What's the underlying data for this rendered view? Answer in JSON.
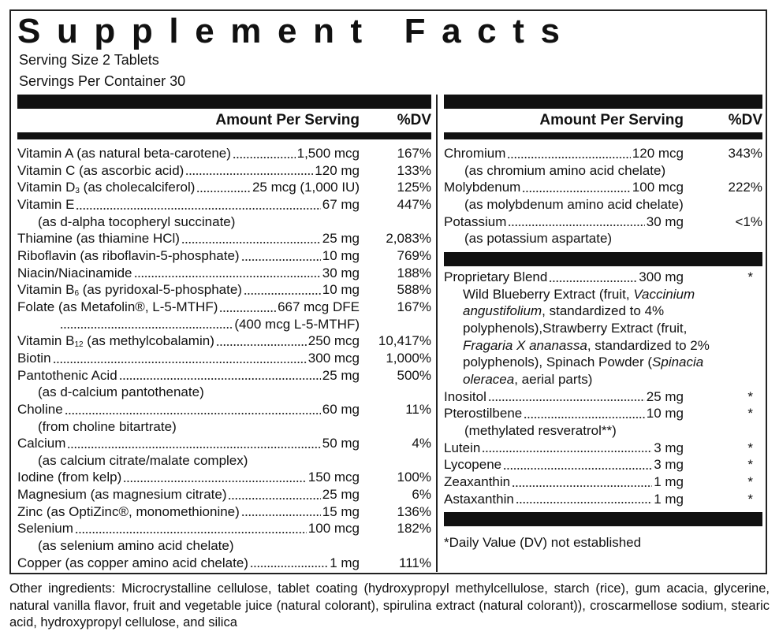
{
  "title": "Supplement Facts",
  "serving_size": "Serving Size 2 Tablets",
  "servings_per_container": "Servings Per Container 30",
  "header": {
    "amount": "Amount Per Serving",
    "dv": "%DV"
  },
  "left_rows": [
    {
      "name": "Vitamin A (as natural beta-carotene)",
      "amount": "1,500 mcg",
      "dv": "167%"
    },
    {
      "name": "Vitamin C (as ascorbic acid)",
      "amount": "120 mg",
      "dv": "133%"
    },
    {
      "name": "Vitamin D",
      "sub": "3",
      "rest": " (as cholecalciferol)",
      "amount": "25 mcg (1,000 IU)",
      "dv": "125%"
    },
    {
      "name": "Vitamin E",
      "amount": "67 mg",
      "dv": "447%"
    },
    {
      "note": "(as d-alpha tocopheryl succinate)"
    },
    {
      "name": "Thiamine (as thiamine HCl)",
      "amount": "25 mg",
      "dv": "2,083%"
    },
    {
      "name": "Riboflavin (as riboflavin-5-phosphate)",
      "amount": "10 mg",
      "dv": "769%"
    },
    {
      "name": "Niacin/Niacinamide",
      "amount": "30 mg",
      "dv": "188%"
    },
    {
      "name": "Vitamin B",
      "sub": "6",
      "rest": " (as pyridoxal-5-phosphate)",
      "amount": "10 mg",
      "dv": "588%"
    },
    {
      "name": "Folate (as Metafolin®, L-5-MTHF)",
      "amount": "667 mcg DFE",
      "dv": "167%"
    },
    {
      "cont": true,
      "amount": "(400 mcg L-5-MTHF)"
    },
    {
      "name": "Vitamin B",
      "sub": "12",
      "rest": " (as methylcobalamin)",
      "amount": "250 mcg",
      "dv": "10,417%"
    },
    {
      "name": "Biotin",
      "amount": "300 mcg",
      "dv": "1,000%"
    },
    {
      "name": "Pantothenic Acid",
      "amount": "25 mg",
      "dv": "500%"
    },
    {
      "note": "(as d-calcium pantothenate)"
    },
    {
      "name": "Choline",
      "amount": "60 mg",
      "dv": "11%"
    },
    {
      "note": "(from choline bitartrate)"
    },
    {
      "name": "Calcium",
      "amount": "50 mg",
      "dv": "4%"
    },
    {
      "note": "(as calcium citrate/malate complex)"
    },
    {
      "name": "Iodine (from kelp)",
      "amount": "150 mcg",
      "dv": "100%"
    },
    {
      "name": "Magnesium (as magnesium citrate)",
      "amount": "25 mg",
      "dv": "6%"
    },
    {
      "name": "Zinc (as OptiZinc®, monomethionine)",
      "amount": "15 mg",
      "dv": "136%"
    },
    {
      "name": "Selenium",
      "amount": "100 mcg",
      "dv": "182%"
    },
    {
      "note": "(as selenium amino acid chelate)"
    },
    {
      "name": "Copper (as copper amino acid chelate)",
      "amount": "1 mg",
      "dv": "111%"
    }
  ],
  "right_rows_top": [
    {
      "name": "Chromium",
      "amount": "120 mcg",
      "dv": "343%"
    },
    {
      "note": "(as chromium amino acid chelate)"
    },
    {
      "name": "Molybdenum",
      "amount": "100 mcg",
      "dv": "222%"
    },
    {
      "note": "(as molybdenum amino acid chelate)"
    },
    {
      "name": "Potassium",
      "amount": "30 mg",
      "dv": "<1%"
    },
    {
      "note": "(as potassium aspartate)"
    }
  ],
  "right_rows_blend": [
    {
      "name": "Proprietary Blend",
      "amount": "300 mg",
      "dv": "*"
    }
  ],
  "blend_lines": [
    [
      {
        "t": "Wild Blueberry Extract (fruit, "
      },
      {
        "t": "Vaccinium",
        "i": true
      }
    ],
    [
      {
        "t": "angustifolium",
        "i": true
      },
      {
        "t": ", standardized to 4%"
      }
    ],
    [
      {
        "t": "polyphenols),Strawberry Extract (fruit,"
      }
    ],
    [
      {
        "t": "Fragaria X ananassa",
        "i": true
      },
      {
        "t": ", standardized to 2%"
      }
    ],
    [
      {
        "t": "polyphenols), Spinach Powder ("
      },
      {
        "t": "Spinacia",
        "i": true
      }
    ],
    [
      {
        "t": "oleracea",
        "i": true
      },
      {
        "t": ", aerial parts)"
      }
    ]
  ],
  "right_rows_bottom": [
    {
      "name": "Inositol",
      "amount": "25 mg",
      "dv": "*"
    },
    {
      "name": "Pterostilbene",
      "amount": "10 mg",
      "dv": "*"
    },
    {
      "note": "(methylated resveratrol**)"
    },
    {
      "name": "Lutein",
      "amount": "3 mg",
      "dv": "*"
    },
    {
      "name": "Lycopene",
      "amount": "3 mg",
      "dv": "*"
    },
    {
      "name": "Zeaxanthin",
      "amount": "1 mg",
      "dv": "*"
    },
    {
      "name": "Astaxanthin",
      "amount": "1 mg",
      "dv": "*"
    }
  ],
  "footnote": "*Daily Value (DV) not established",
  "other_ingredients": "Other ingredients: Microcrystalline cellulose,  tablet coating (hydroxypropyl methylcellulose, starch (rice), gum acacia, glycerine, natural vanilla flavor, fruit and vegetable juice (natural colorant), spirulina extract (natural colorant)), croscarmellose sodium, stearic acid, hydroxypropyl cellulose, and silica"
}
